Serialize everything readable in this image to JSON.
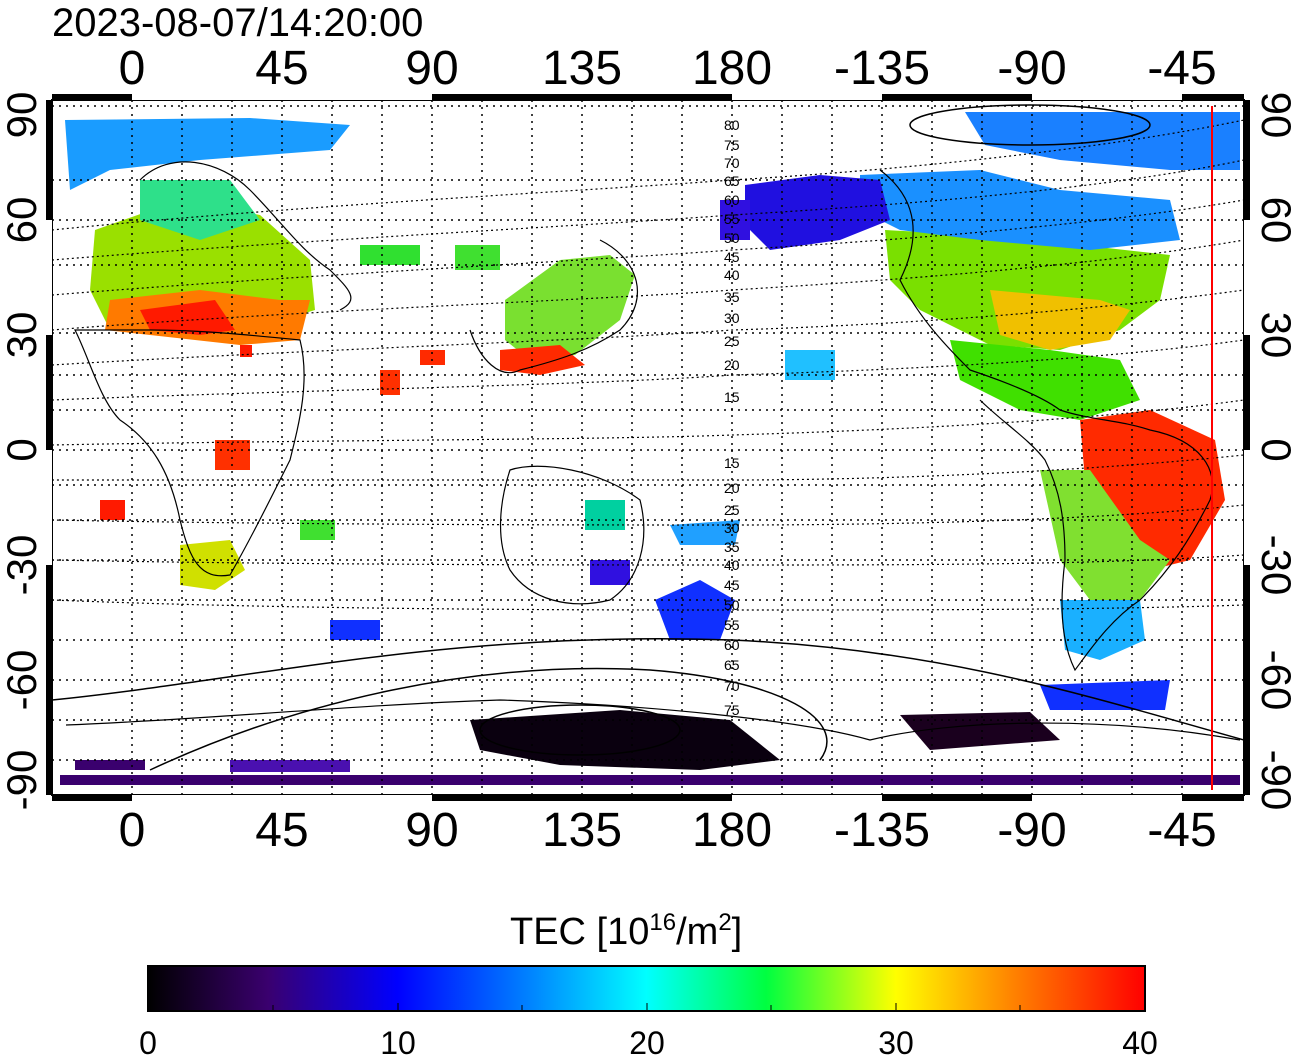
{
  "title": "2023-08-07/14:20:00",
  "map": {
    "type": "global-TEC-map",
    "x_ticks": [
      "0",
      "45",
      "90",
      "135",
      "180",
      "-135",
      "-90",
      "-45"
    ],
    "y_ticks_left": [
      "90",
      "60",
      "30",
      "0",
      "-30",
      "-60",
      "-90"
    ],
    "y_ticks_right": [
      "90",
      "60",
      "30",
      "0",
      "-30",
      "-60",
      "-90"
    ],
    "mag_lat_labels_north": [
      "80",
      "75",
      "70",
      "65",
      "60",
      "55",
      "50",
      "45",
      "40",
      "35",
      "30",
      "25",
      "20",
      "15"
    ],
    "mag_lat_labels_south": [
      "15",
      "20",
      "25",
      "30",
      "35",
      "40",
      "45",
      "50",
      "55",
      "60",
      "65",
      "70",
      "75"
    ],
    "terminator_color": "#ff0000",
    "grid": "dotted"
  },
  "colorbar": {
    "label_main": "TEC  [10",
    "label_sup1": "16",
    "label_mid": "/m",
    "label_sup2": "2",
    "label_end": "]",
    "ticks": [
      "0",
      "10",
      "20",
      "30",
      "40"
    ],
    "min": 0,
    "max": 40
  },
  "colors": {
    "scale": [
      "#000000",
      "#3a006e",
      "#0000ff",
      "#00ffff",
      "#00ff00",
      "#ffff00",
      "#ff0000"
    ]
  }
}
